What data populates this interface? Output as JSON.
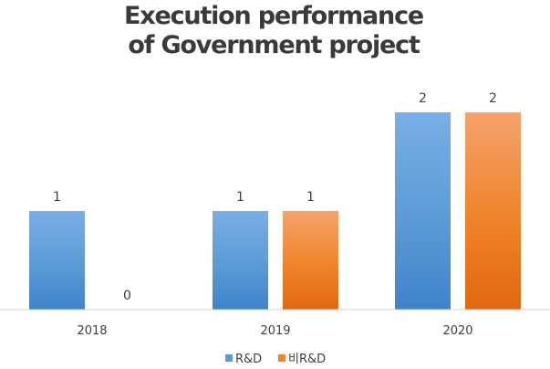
{
  "chart_data": {
    "type": "bar",
    "title_lines": [
      "Execution performance",
      "of Government project"
    ],
    "categories": [
      "2018",
      "2019",
      "2020"
    ],
    "series": [
      {
        "name": "R&D",
        "values": [
          1,
          1,
          2
        ]
      },
      {
        "name": "비R&D",
        "values": [
          0,
          1,
          2
        ]
      }
    ],
    "ylim": [
      0,
      2
    ],
    "grid": false,
    "data_labels": true,
    "legend": "bottom",
    "colors": {
      "R&D": {
        "light": "#79aee6",
        "mid": "#5b9bd5",
        "dark": "#3f84cc"
      },
      "비R&D": {
        "light": "#f5a36d",
        "mid": "#f0832a",
        "dark": "#e2670f"
      }
    },
    "axis_color": "#d0d0d0"
  }
}
